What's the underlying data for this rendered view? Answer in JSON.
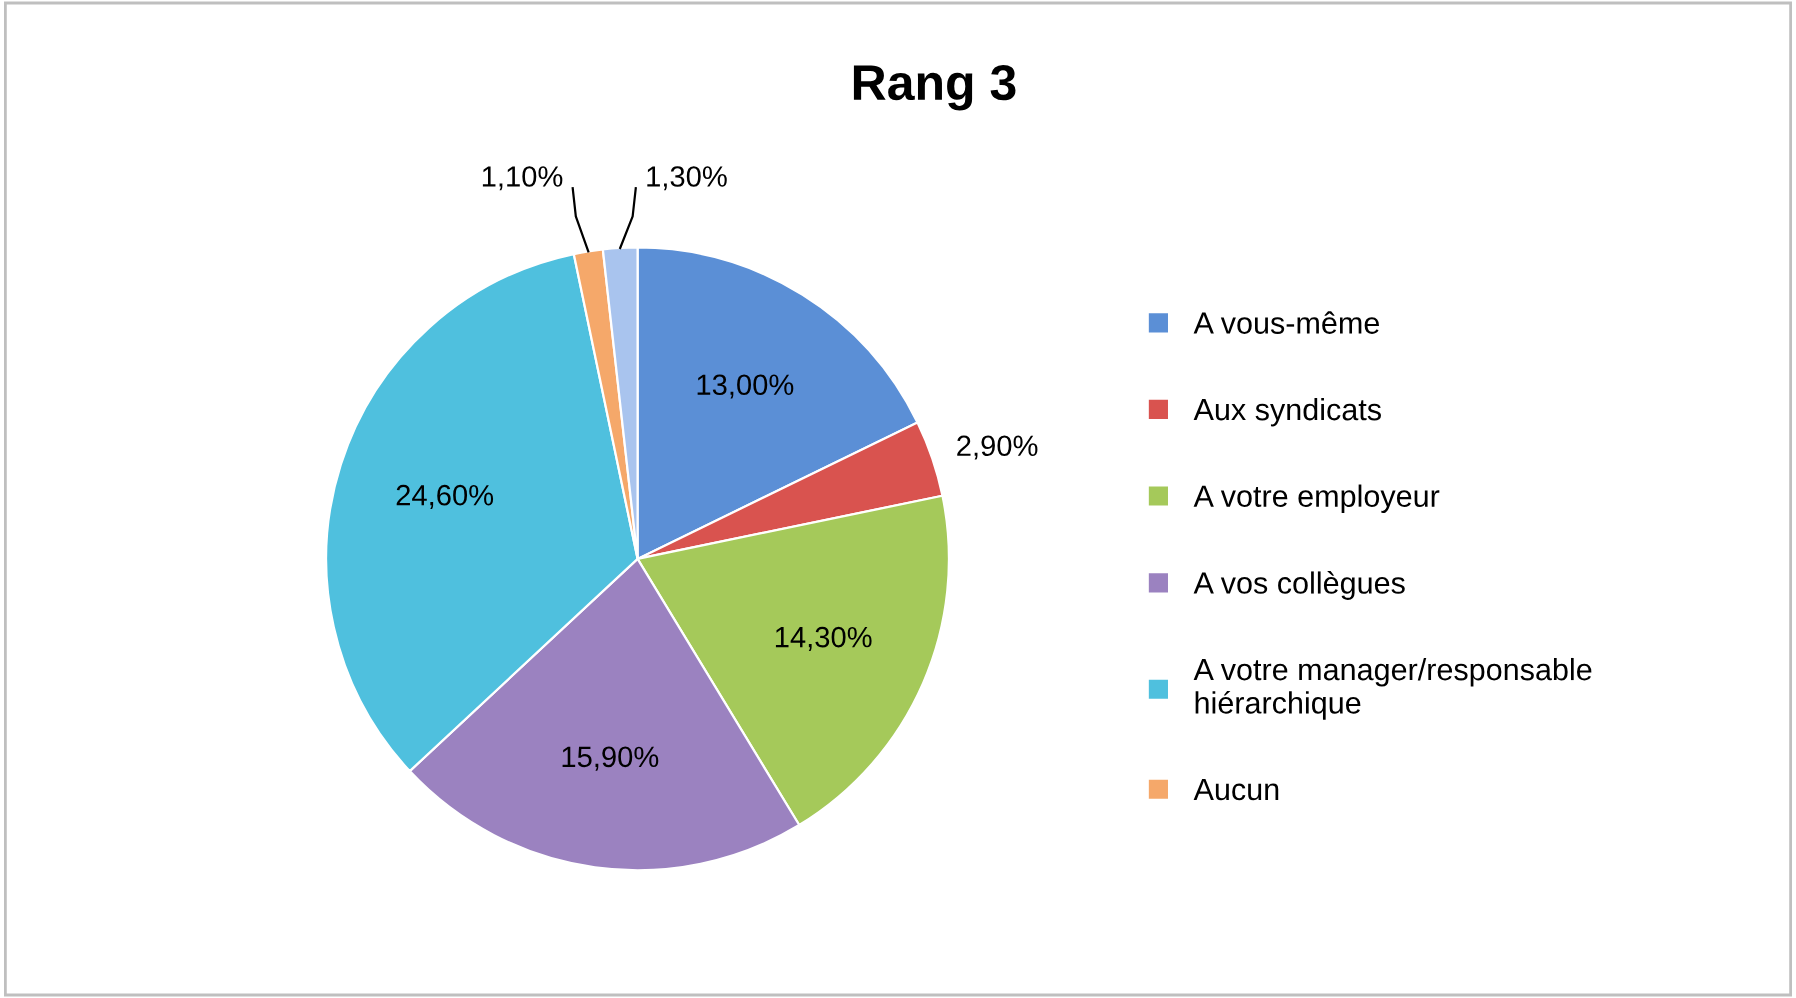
{
  "chart_data": {
    "type": "pie",
    "title": "Rang 3",
    "categories": [
      "A vous-même",
      "Aux syndicats",
      "A votre employeur",
      "A vos collègues",
      "A votre manager/responsable hiérarchique",
      "Aucun",
      null
    ],
    "values": [
      13.0,
      2.9,
      14.3,
      15.9,
      24.6,
      1.1,
      1.3
    ],
    "colors": [
      "#5b8fd6",
      "#d9534f",
      "#a5c95a",
      "#9b82c0",
      "#4fc0de",
      "#f5a86a",
      "#a9c4ee"
    ],
    "value_labels": [
      "13,00%",
      "2,90%",
      "14,30%",
      "15,90%",
      "24,60%",
      "1,10%",
      "1,30%"
    ],
    "legend": "right"
  }
}
